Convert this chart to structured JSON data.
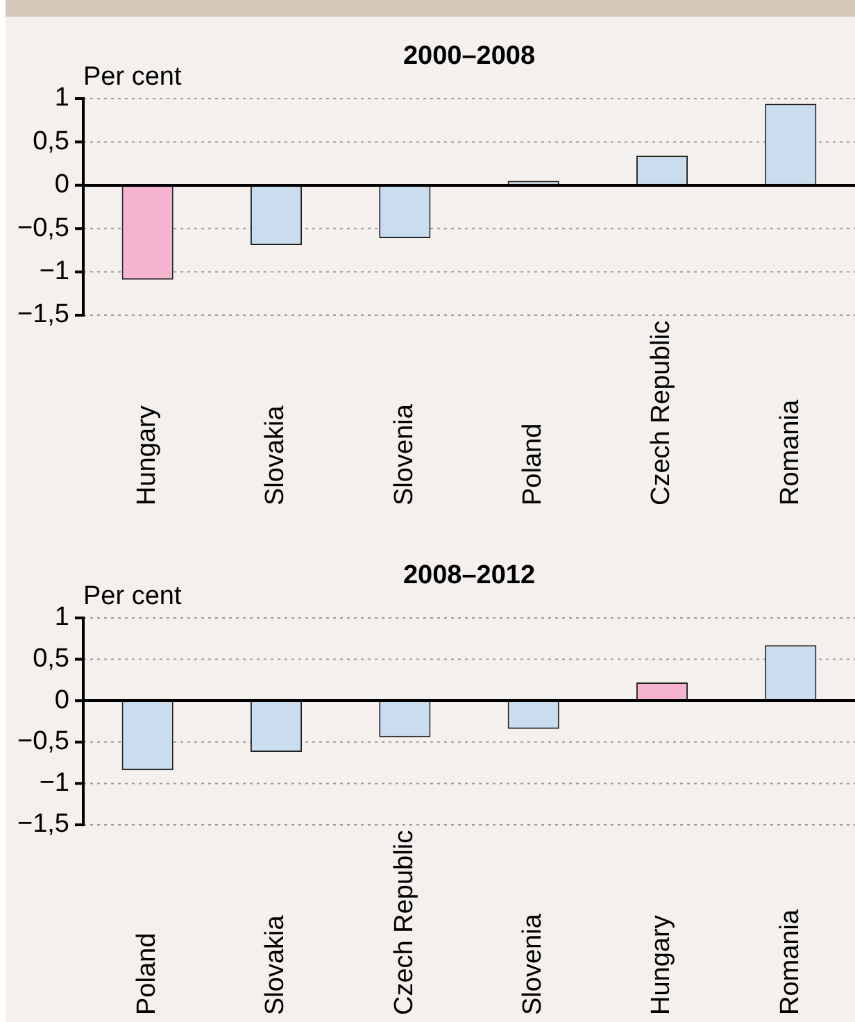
{
  "chart_data": [
    {
      "type": "bar",
      "title": "2000–2008",
      "ylabel": "Per cent",
      "categories": [
        "Hungary",
        "Slovakia",
        "Slovenia",
        "Poland",
        "Czech Republic",
        "Romania"
      ],
      "values": [
        -1.09,
        -0.69,
        -0.61,
        0.05,
        0.34,
        0.94
      ],
      "colors": [
        "#f5b3cf",
        "#c9ddef",
        "#c9ddef",
        "#c9ddef",
        "#c9ddef",
        "#c9ddef"
      ],
      "ylim": [
        -1.5,
        1
      ],
      "yticks": [
        {
          "value": 1,
          "label": "1"
        },
        {
          "value": 0.5,
          "label": "0,5"
        },
        {
          "value": 0,
          "label": "0"
        },
        {
          "value": -0.5,
          "label": "−0,5"
        },
        {
          "value": -1,
          "label": "−1"
        },
        {
          "value": -1.5,
          "label": "−1,5"
        }
      ],
      "grid": "y"
    },
    {
      "type": "bar",
      "title": "2008–2012",
      "ylabel": "Per cent",
      "categories": [
        "Poland",
        "Slovakia",
        "Czech Republic",
        "Slovenia",
        "Hungary",
        "Romania"
      ],
      "values": [
        -0.84,
        -0.62,
        -0.44,
        -0.34,
        0.22,
        0.67
      ],
      "colors": [
        "#c9ddef",
        "#c9ddef",
        "#c9ddef",
        "#c9ddef",
        "#f5b3cf",
        "#c9ddef"
      ],
      "ylim": [
        -1.5,
        1
      ],
      "yticks": [
        {
          "value": 1,
          "label": "1"
        },
        {
          "value": 0.5,
          "label": "0,5"
        },
        {
          "value": 0,
          "label": "0"
        },
        {
          "value": -0.5,
          "label": "−0,5"
        },
        {
          "value": -1,
          "label": "−1"
        },
        {
          "value": -1.5,
          "label": "−1,5"
        }
      ],
      "grid": "y"
    }
  ]
}
